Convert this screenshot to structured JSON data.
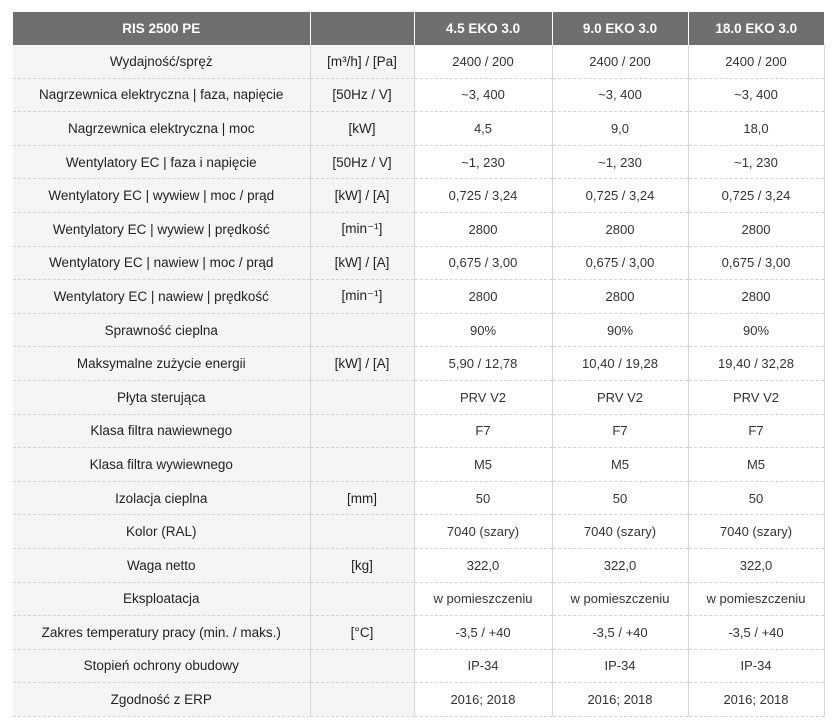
{
  "header": {
    "title": "RIS 2500 PE",
    "unit": "",
    "models": [
      "4.5 EKO 3.0",
      "9.0 EKO 3.0",
      "18.0 EKO 3.0"
    ]
  },
  "rows": [
    {
      "name": "Wydajność/spręż",
      "unit": "[m³/h] / [Pa]",
      "values": [
        "2400 / 200",
        "2400 / 200",
        "2400 / 200"
      ]
    },
    {
      "name": "Nagrzewnica elektryczna | faza, napięcie",
      "unit": "[50Hz / V]",
      "values": [
        "~3, 400",
        "~3, 400",
        "~3, 400"
      ]
    },
    {
      "name": "Nagrzewnica elektryczna | moc",
      "unit": "[kW]",
      "values": [
        "4,5",
        "9,0",
        "18,0"
      ]
    },
    {
      "name": "Wentylatory EC | faza i napięcie",
      "unit": "[50Hz / V]",
      "values": [
        "~1, 230",
        "~1, 230",
        "~1, 230"
      ]
    },
    {
      "name": "Wentylatory EC | wywiew | moc / prąd",
      "unit": "[kW] / [A]",
      "values": [
        "0,725 / 3,24",
        "0,725 / 3,24",
        "0,725 / 3,24"
      ]
    },
    {
      "name": "Wentylatory EC | wywiew | prędkość",
      "unit": "[min⁻¹]",
      "values": [
        "2800",
        "2800",
        "2800"
      ]
    },
    {
      "name": "Wentylatory EC | nawiew | moc / prąd",
      "unit": "[kW] / [A]",
      "values": [
        "0,675 / 3,00",
        "0,675 / 3,00",
        "0,675 / 3,00"
      ]
    },
    {
      "name": "Wentylatory EC | nawiew | prędkość",
      "unit": "[min⁻¹]",
      "values": [
        "2800",
        "2800",
        "2800"
      ]
    },
    {
      "name": "Sprawność cieplna",
      "unit": "",
      "values": [
        "90%",
        "90%",
        "90%"
      ]
    },
    {
      "name": "Maksymalne zużycie energii",
      "unit": "[kW] / [A]",
      "values": [
        "5,90 / 12,78",
        "10,40 / 19,28",
        "19,40 / 32,28"
      ]
    },
    {
      "name": "Płyta sterująca",
      "unit": "",
      "values": [
        "PRV V2",
        "PRV V2",
        "PRV V2"
      ]
    },
    {
      "name": "Klasa filtra nawiewnego",
      "unit": "",
      "values": [
        "F7",
        "F7",
        "F7"
      ]
    },
    {
      "name": "Klasa filtra wywiewnego",
      "unit": "",
      "values": [
        "M5",
        "M5",
        "M5"
      ]
    },
    {
      "name": "Izolacja cieplna",
      "unit": "[mm]",
      "values": [
        "50",
        "50",
        "50"
      ]
    },
    {
      "name": "Kolor (RAL)",
      "unit": "",
      "values": [
        "7040 (szary)",
        "7040 (szary)",
        "7040 (szary)"
      ]
    },
    {
      "name": "Waga netto",
      "unit": "[kg]",
      "values": [
        "322,0",
        "322,0",
        "322,0"
      ]
    },
    {
      "name": "Eksploatacja",
      "unit": "",
      "values": [
        "w pomieszczeniu",
        "w pomieszczeniu",
        "w pomieszczeniu"
      ]
    },
    {
      "name": "Zakres temperatury pracy (min. / maks.)",
      "unit": "[°C]",
      "values": [
        "-3,5 / +40",
        "-3,5 / +40",
        "-3,5 / +40"
      ]
    },
    {
      "name": "Stopień ochrony obudowy",
      "unit": "",
      "values": [
        "IP-34",
        "IP-34",
        "IP-34"
      ]
    },
    {
      "name": "Zgodność z ERP",
      "unit": "",
      "values": [
        "2016; 2018",
        "2016; 2018",
        "2016; 2018"
      ]
    }
  ]
}
